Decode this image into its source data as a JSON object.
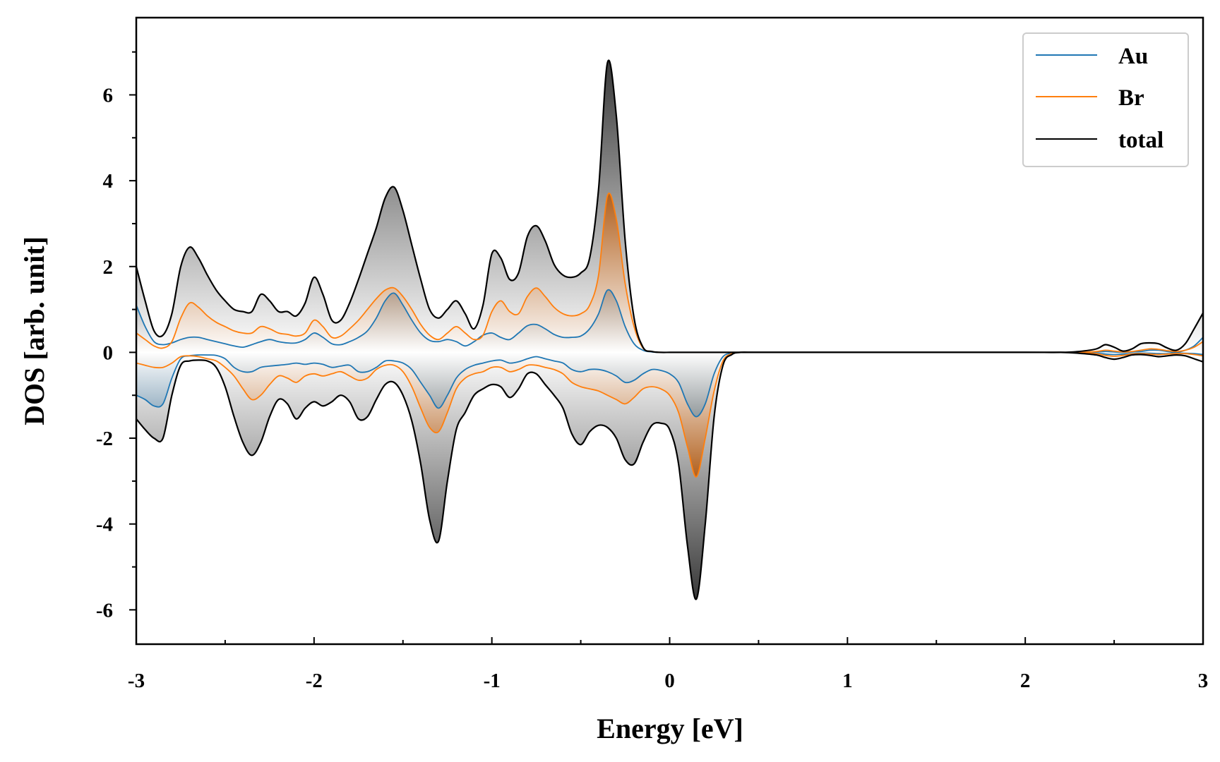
{
  "chart_data": {
    "type": "line",
    "xlabel": "Energy [eV]",
    "ylabel": "DOS [arb. unit]",
    "xlim": [
      -3,
      3
    ],
    "ylim": [
      -6.8,
      7.8
    ],
    "xticks": [
      -3,
      -2,
      -1,
      0,
      1,
      2,
      3
    ],
    "xtick_labels": [
      "-3",
      "-2",
      "-1",
      "0",
      "1",
      "2",
      "3"
    ],
    "yticks": [
      -6,
      -4,
      -2,
      0,
      2,
      4,
      6
    ],
    "ytick_labels": [
      "-6",
      "-4",
      "-2",
      "0",
      "2",
      "4",
      "6"
    ],
    "grid": false,
    "legend_position": "top-right",
    "fill_between_curves": true,
    "x": [
      -3.0,
      -2.95,
      -2.9,
      -2.85,
      -2.8,
      -2.75,
      -2.7,
      -2.65,
      -2.6,
      -2.55,
      -2.5,
      -2.45,
      -2.4,
      -2.35,
      -2.3,
      -2.25,
      -2.2,
      -2.15,
      -2.1,
      -2.05,
      -2.0,
      -1.95,
      -1.9,
      -1.85,
      -1.8,
      -1.75,
      -1.7,
      -1.65,
      -1.6,
      -1.55,
      -1.5,
      -1.45,
      -1.4,
      -1.35,
      -1.3,
      -1.25,
      -1.2,
      -1.15,
      -1.1,
      -1.05,
      -1.0,
      -0.95,
      -0.9,
      -0.85,
      -0.8,
      -0.75,
      -0.7,
      -0.65,
      -0.6,
      -0.55,
      -0.5,
      -0.45,
      -0.4,
      -0.35,
      -0.3,
      -0.25,
      -0.2,
      -0.15,
      -0.1,
      -0.05,
      0.0,
      0.05,
      0.1,
      0.15,
      0.2,
      0.25,
      0.3,
      0.35,
      0.4,
      0.5,
      1.0,
      1.5,
      2.0,
      2.2,
      2.3,
      2.4,
      2.45,
      2.5,
      2.55,
      2.6,
      2.65,
      2.7,
      2.75,
      2.8,
      2.85,
      2.9,
      2.95,
      3.0
    ],
    "series": [
      {
        "name": "Au",
        "color": "#1f77b4",
        "up": [
          1.1,
          0.6,
          0.25,
          0.18,
          0.22,
          0.3,
          0.35,
          0.35,
          0.3,
          0.25,
          0.2,
          0.15,
          0.12,
          0.18,
          0.25,
          0.3,
          0.25,
          0.22,
          0.22,
          0.3,
          0.45,
          0.35,
          0.2,
          0.18,
          0.25,
          0.35,
          0.5,
          0.8,
          1.2,
          1.38,
          1.1,
          0.75,
          0.45,
          0.28,
          0.25,
          0.3,
          0.25,
          0.15,
          0.25,
          0.4,
          0.45,
          0.35,
          0.3,
          0.45,
          0.62,
          0.65,
          0.55,
          0.42,
          0.35,
          0.35,
          0.38,
          0.55,
          0.9,
          1.45,
          1.2,
          0.6,
          0.2,
          0.05,
          0.01,
          0.0,
          0.0,
          0.0,
          0.0,
          0.0,
          0.0,
          0.0,
          0.0,
          0.0,
          0.0,
          0.0,
          0.0,
          0.0,
          0.0,
          0.0,
          0.0,
          0.01,
          0.02,
          0.01,
          0.0,
          0.01,
          0.02,
          0.05,
          0.05,
          0.02,
          0.0,
          0.05,
          0.15,
          0.35
        ],
        "down": [
          -1.0,
          -1.1,
          -1.25,
          -1.2,
          -0.6,
          -0.15,
          -0.08,
          -0.06,
          -0.06,
          -0.07,
          -0.15,
          -0.35,
          -0.45,
          -0.45,
          -0.35,
          -0.32,
          -0.3,
          -0.28,
          -0.25,
          -0.28,
          -0.25,
          -0.28,
          -0.35,
          -0.32,
          -0.3,
          -0.45,
          -0.45,
          -0.35,
          -0.2,
          -0.2,
          -0.25,
          -0.4,
          -0.7,
          -1.0,
          -1.3,
          -1.0,
          -0.6,
          -0.4,
          -0.3,
          -0.25,
          -0.2,
          -0.18,
          -0.25,
          -0.22,
          -0.15,
          -0.1,
          -0.15,
          -0.2,
          -0.25,
          -0.4,
          -0.45,
          -0.4,
          -0.4,
          -0.45,
          -0.55,
          -0.7,
          -0.65,
          -0.5,
          -0.4,
          -0.42,
          -0.5,
          -0.7,
          -1.2,
          -1.5,
          -1.2,
          -0.5,
          -0.1,
          -0.02,
          0.0,
          0.0,
          0.0,
          0.0,
          0.0,
          0.0,
          -0.01,
          -0.02,
          -0.04,
          -0.05,
          -0.04,
          -0.03,
          -0.02,
          -0.02,
          -0.03,
          -0.03,
          -0.02,
          -0.02,
          -0.03,
          -0.05
        ]
      },
      {
        "name": "Br",
        "color": "#ff7f0e",
        "up": [
          0.45,
          0.3,
          0.15,
          0.1,
          0.25,
          0.8,
          1.15,
          1.05,
          0.85,
          0.7,
          0.6,
          0.5,
          0.45,
          0.45,
          0.6,
          0.55,
          0.45,
          0.42,
          0.38,
          0.45,
          0.75,
          0.6,
          0.35,
          0.38,
          0.55,
          0.75,
          1.0,
          1.25,
          1.45,
          1.5,
          1.3,
          1.0,
          0.65,
          0.4,
          0.3,
          0.45,
          0.6,
          0.45,
          0.3,
          0.4,
          0.95,
          1.2,
          0.95,
          0.9,
          1.3,
          1.5,
          1.3,
          1.05,
          0.9,
          0.85,
          0.9,
          1.1,
          1.8,
          3.65,
          3.1,
          1.6,
          0.6,
          0.1,
          0.02,
          0.0,
          0.0,
          0.0,
          0.0,
          0.0,
          0.0,
          0.0,
          0.0,
          0.0,
          0.0,
          0.0,
          0.0,
          0.0,
          0.0,
          0.0,
          0.0,
          0.02,
          0.05,
          0.03,
          0.01,
          0.02,
          0.05,
          0.08,
          0.07,
          0.04,
          0.02,
          0.05,
          0.12,
          0.25
        ],
        "down": [
          -0.25,
          -0.3,
          -0.35,
          -0.35,
          -0.25,
          -0.1,
          -0.08,
          -0.1,
          -0.15,
          -0.2,
          -0.35,
          -0.55,
          -0.85,
          -1.1,
          -1.0,
          -0.75,
          -0.55,
          -0.6,
          -0.7,
          -0.55,
          -0.5,
          -0.55,
          -0.5,
          -0.45,
          -0.55,
          -0.65,
          -0.6,
          -0.4,
          -0.3,
          -0.3,
          -0.45,
          -0.8,
          -1.3,
          -1.75,
          -1.85,
          -1.4,
          -0.85,
          -0.6,
          -0.5,
          -0.45,
          -0.35,
          -0.35,
          -0.45,
          -0.4,
          -0.3,
          -0.3,
          -0.35,
          -0.4,
          -0.5,
          -0.7,
          -0.8,
          -0.85,
          -0.9,
          -1.0,
          -1.1,
          -1.2,
          -1.05,
          -0.85,
          -0.8,
          -0.85,
          -1.0,
          -1.4,
          -2.2,
          -2.9,
          -2.0,
          -0.9,
          -0.2,
          -0.03,
          0.0,
          0.0,
          0.0,
          0.0,
          0.0,
          0.0,
          -0.01,
          -0.03,
          -0.07,
          -0.09,
          -0.07,
          -0.04,
          -0.03,
          -0.04,
          -0.05,
          -0.04,
          -0.03,
          -0.03,
          -0.05,
          -0.08
        ]
      },
      {
        "name": "total",
        "color": "#000000",
        "up": [
          2.0,
          1.2,
          0.5,
          0.4,
          0.9,
          2.0,
          2.45,
          2.2,
          1.8,
          1.45,
          1.2,
          1.0,
          0.95,
          0.95,
          1.35,
          1.2,
          0.95,
          0.95,
          0.85,
          1.15,
          1.75,
          1.35,
          0.75,
          0.75,
          1.15,
          1.7,
          2.3,
          2.9,
          3.6,
          3.85,
          3.3,
          2.5,
          1.7,
          1.0,
          0.8,
          1.0,
          1.2,
          0.9,
          0.55,
          1.1,
          2.3,
          2.2,
          1.7,
          1.85,
          2.7,
          2.95,
          2.6,
          2.05,
          1.8,
          1.75,
          1.85,
          2.2,
          3.8,
          6.75,
          5.5,
          2.6,
          0.8,
          0.12,
          0.02,
          0.0,
          0.0,
          0.0,
          0.0,
          0.0,
          0.0,
          0.0,
          0.0,
          0.0,
          0.0,
          0.0,
          0.0,
          0.0,
          0.0,
          0.0,
          0.02,
          0.08,
          0.18,
          0.12,
          0.03,
          0.08,
          0.2,
          0.22,
          0.2,
          0.1,
          0.05,
          0.2,
          0.55,
          0.92
        ],
        "down": [
          -1.55,
          -1.8,
          -2.0,
          -2.0,
          -1.0,
          -0.3,
          -0.2,
          -0.18,
          -0.2,
          -0.35,
          -0.8,
          -1.5,
          -2.1,
          -2.4,
          -2.1,
          -1.5,
          -1.1,
          -1.2,
          -1.55,
          -1.3,
          -1.15,
          -1.25,
          -1.15,
          -1.0,
          -1.15,
          -1.55,
          -1.5,
          -1.1,
          -0.75,
          -0.7,
          -1.0,
          -1.6,
          -2.6,
          -3.9,
          -4.4,
          -3.0,
          -1.8,
          -1.4,
          -1.0,
          -0.85,
          -0.75,
          -0.8,
          -1.05,
          -0.85,
          -0.5,
          -0.5,
          -0.75,
          -1.0,
          -1.3,
          -1.9,
          -2.15,
          -1.85,
          -1.7,
          -1.75,
          -2.0,
          -2.5,
          -2.6,
          -2.1,
          -1.7,
          -1.65,
          -1.8,
          -2.6,
          -4.5,
          -5.75,
          -4.0,
          -1.5,
          -0.3,
          -0.05,
          0.0,
          0.0,
          0.0,
          0.0,
          0.0,
          0.0,
          -0.02,
          -0.06,
          -0.12,
          -0.16,
          -0.12,
          -0.06,
          -0.05,
          -0.07,
          -0.1,
          -0.08,
          -0.06,
          -0.08,
          -0.15,
          -0.22
        ]
      }
    ]
  }
}
